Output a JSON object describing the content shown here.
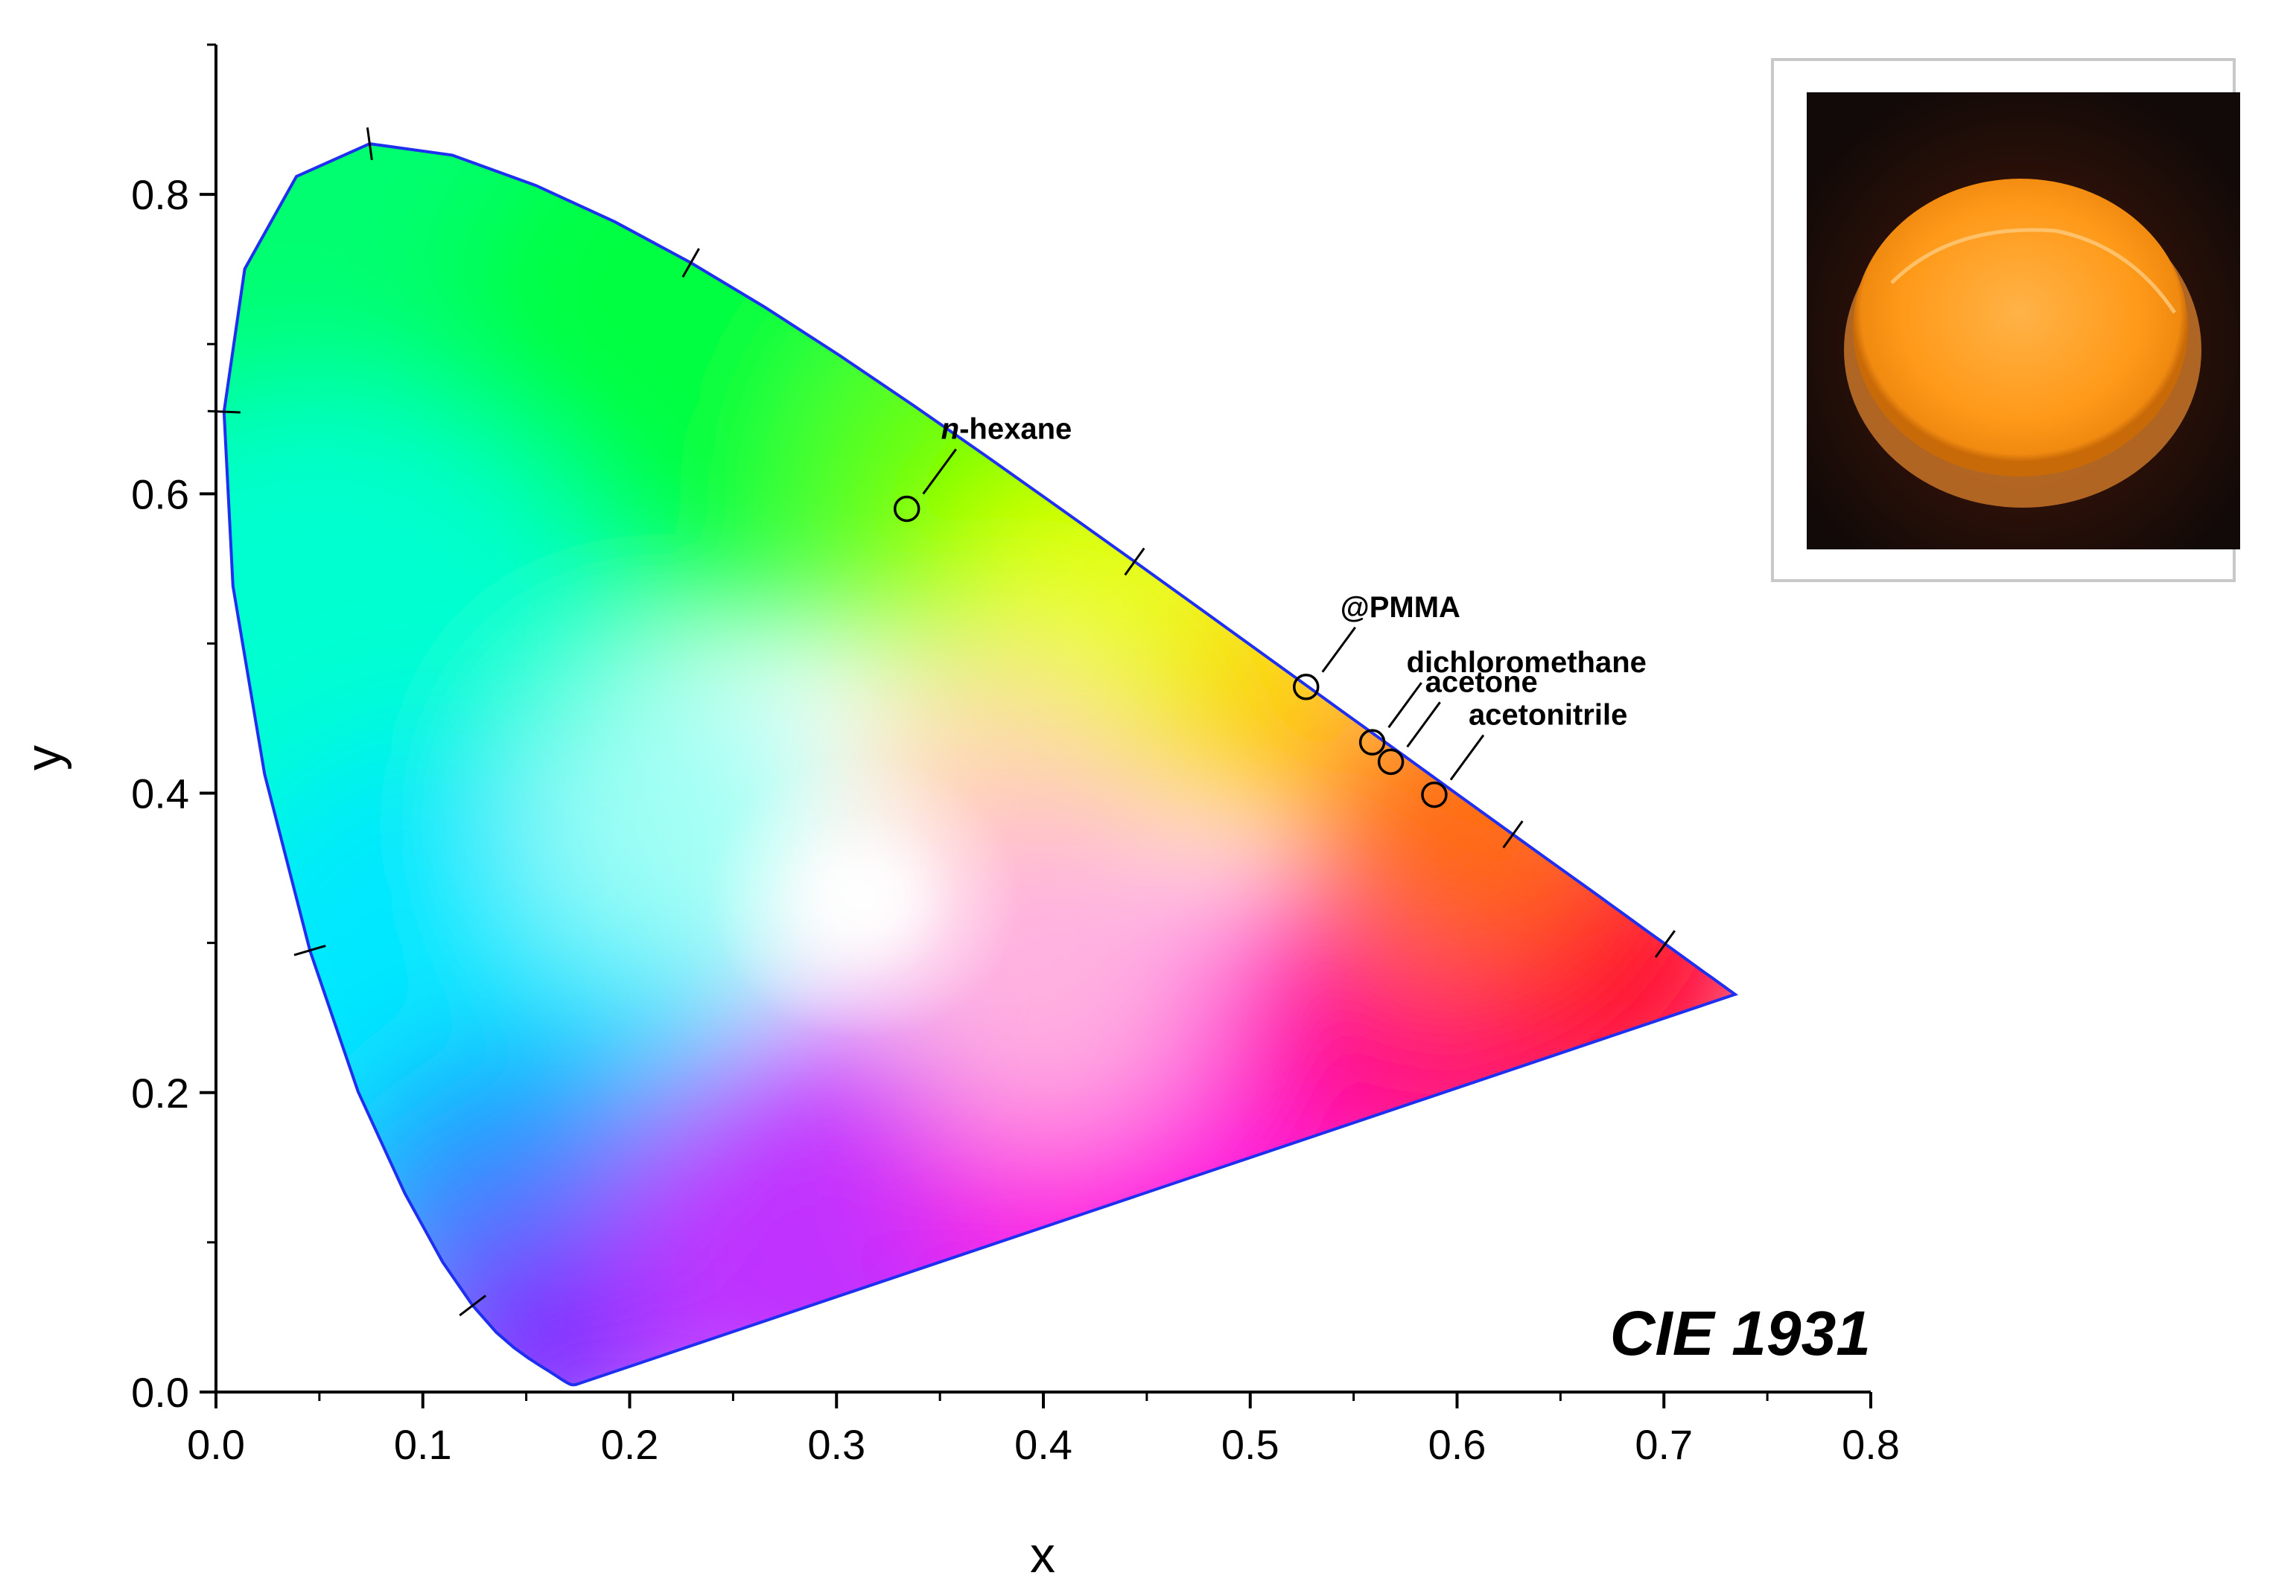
{
  "chart_data": {
    "type": "scatter",
    "title": "",
    "xlabel": "x",
    "ylabel": "y",
    "xlim": [
      0.0,
      0.8
    ],
    "ylim": [
      0.0,
      0.9
    ],
    "xticks": [
      "0.0",
      "0.1",
      "0.2",
      "0.3",
      "0.4",
      "0.5",
      "0.6",
      "0.7",
      "0.8"
    ],
    "yticks": [
      "0.0",
      "0.2",
      "0.4",
      "0.6",
      "0.8"
    ],
    "diagram_label": "CIE 1931",
    "grid": false,
    "boundary_color": "#1f2ff0",
    "points": [
      {
        "label": "n-hexane",
        "label_italic_prefix": "n",
        "label_rest": "-hexane",
        "x": 0.334,
        "y": 0.59
      },
      {
        "label": "@PMMA",
        "x": 0.527,
        "y": 0.471
      },
      {
        "label": "dichloromethane",
        "x": 0.559,
        "y": 0.434
      },
      {
        "label": "acetone",
        "x": 0.568,
        "y": 0.421
      },
      {
        "label": "acetonitrile",
        "x": 0.589,
        "y": 0.399
      }
    ],
    "inset": {
      "description_icon": "glowing-orange-disk-photo-icon",
      "glow_color": "#ff9a1a"
    }
  }
}
